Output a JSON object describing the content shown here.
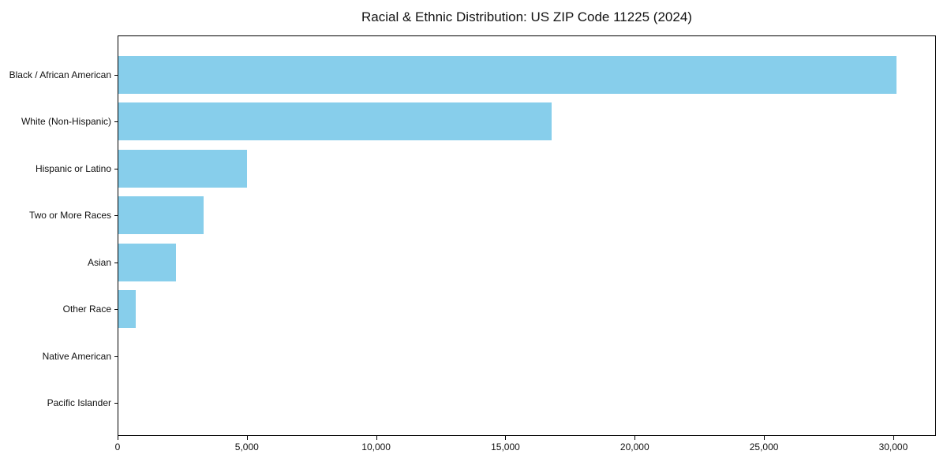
{
  "chart_data": {
    "type": "bar",
    "orientation": "horizontal",
    "title": "Racial & Ethnic Distribution: US ZIP Code 11225 (2024)",
    "categories": [
      "Black / African American",
      "White (Non-Hispanic)",
      "Hispanic or Latino",
      "Two or More Races",
      "Asian",
      "Other Race",
      "Native American",
      "Pacific Islander"
    ],
    "values": [
      30150,
      16780,
      4990,
      3290,
      2220,
      670,
      0,
      0
    ],
    "xlabel": "",
    "ylabel": "",
    "xlim": [
      0,
      31650
    ],
    "x_ticks": [
      {
        "value": 0,
        "label": "0"
      },
      {
        "value": 5000,
        "label": "5,000"
      },
      {
        "value": 10000,
        "label": "10,000"
      },
      {
        "value": 15000,
        "label": "15,000"
      },
      {
        "value": 20000,
        "label": "20,000"
      },
      {
        "value": 25000,
        "label": "25,000"
      },
      {
        "value": 30000,
        "label": "30,000"
      }
    ],
    "grid": false,
    "legend": null,
    "bar_color": "#87CEEB",
    "background_color": "#FFFFFF",
    "spine_color": "#000000"
  }
}
